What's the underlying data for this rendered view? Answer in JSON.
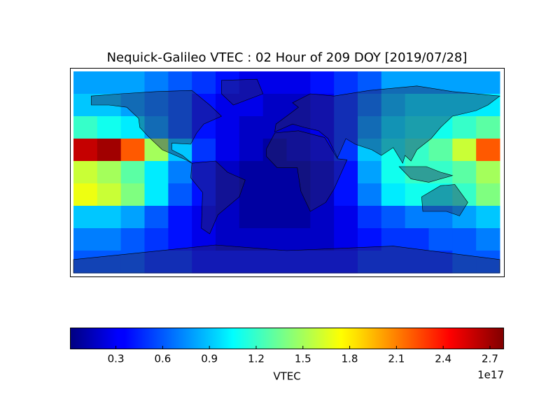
{
  "chart_data": {
    "type": "heatmap",
    "title": "Nequick-Galileo VTEC : 02 Hour of 209 DOY [2019/07/28]",
    "colormap": "jet",
    "x": [
      -170,
      -150,
      -130,
      -110,
      -90,
      -70,
      -50,
      -30,
      -10,
      10,
      30,
      50,
      70,
      90,
      110,
      130,
      150,
      170
    ],
    "y": [
      80,
      60,
      40,
      20,
      0,
      -20,
      -40,
      -60,
      -80
    ],
    "xlim": [
      -180,
      180
    ],
    "ylim": [
      -90,
      90
    ],
    "z": [
      [
        0.8,
        0.8,
        0.8,
        0.7,
        0.6,
        0.5,
        0.4,
        0.3,
        0.3,
        0.3,
        0.4,
        0.5,
        0.6,
        0.8,
        0.8,
        0.8,
        0.8,
        0.8
      ],
      [
        0.9,
        0.9,
        0.8,
        0.7,
        0.6,
        0.4,
        0.3,
        0.3,
        0.2,
        0.2,
        0.3,
        0.5,
        0.7,
        0.9,
        1.0,
        1.0,
        1.0,
        1.0
      ],
      [
        1.2,
        1.1,
        1.0,
        0.8,
        0.6,
        0.4,
        0.3,
        0.2,
        0.2,
        0.2,
        0.3,
        0.5,
        0.8,
        1.0,
        1.1,
        1.1,
        1.2,
        1.3
      ],
      [
        2.6,
        2.7,
        2.2,
        1.5,
        0.9,
        0.5,
        0.3,
        0.2,
        0.1,
        0.2,
        0.3,
        0.5,
        0.9,
        1.1,
        1.2,
        1.3,
        1.6,
        2.2
      ],
      [
        1.6,
        1.5,
        1.3,
        1.0,
        0.7,
        0.4,
        0.2,
        0.1,
        0.1,
        0.1,
        0.2,
        0.4,
        0.8,
        1.1,
        1.2,
        1.2,
        1.3,
        1.5
      ],
      [
        1.7,
        1.6,
        1.4,
        1.0,
        0.6,
        0.4,
        0.2,
        0.1,
        0.1,
        0.1,
        0.2,
        0.4,
        0.7,
        1.0,
        1.1,
        1.1,
        1.2,
        1.4
      ],
      [
        0.9,
        0.9,
        0.8,
        0.6,
        0.4,
        0.3,
        0.2,
        0.1,
        0.1,
        0.1,
        0.2,
        0.3,
        0.5,
        0.6,
        0.7,
        0.7,
        0.8,
        0.9
      ],
      [
        0.7,
        0.7,
        0.6,
        0.5,
        0.4,
        0.3,
        0.2,
        0.2,
        0.2,
        0.2,
        0.2,
        0.3,
        0.4,
        0.5,
        0.5,
        0.6,
        0.6,
        0.7
      ],
      [
        0.6,
        0.6,
        0.6,
        0.5,
        0.5,
        0.4,
        0.4,
        0.4,
        0.4,
        0.4,
        0.4,
        0.4,
        0.5,
        0.5,
        0.5,
        0.5,
        0.6,
        0.6
      ]
    ],
    "clim": [
      0.01,
      2.79
    ],
    "colorbar_ticks": [
      0.3,
      0.6,
      0.9,
      1.2,
      1.5,
      1.8,
      2.1,
      2.4,
      2.7
    ],
    "colorbar_label": "VTEC",
    "colorbar_offset": "1e17"
  }
}
